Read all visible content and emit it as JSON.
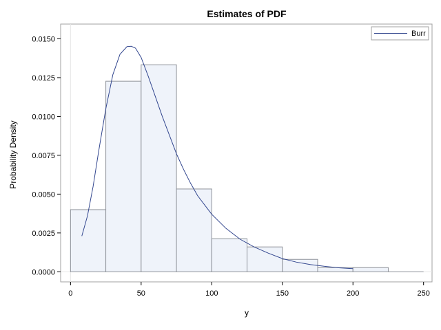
{
  "chart_data": {
    "type": "bar",
    "title": "Estimates of PDF",
    "xlabel": "y",
    "ylabel": "Probability Density",
    "xlim": [
      -7,
      256
    ],
    "ylim": [
      -0.00065,
      0.01595
    ],
    "x_ticks": [
      0,
      50,
      100,
      150,
      200,
      250
    ],
    "x_tick_labels": [
      "0",
      "50",
      "100",
      "150",
      "200",
      "250"
    ],
    "y_ticks": [
      0,
      0.0025,
      0.005,
      0.0075,
      0.01,
      0.0125,
      0.015
    ],
    "y_tick_labels": [
      "0.0000",
      "0.0025",
      "0.0050",
      "0.0075",
      "0.0100",
      "0.0125",
      "0.0150"
    ],
    "grid": false,
    "histogram": {
      "bins": [
        {
          "start": 0,
          "end": 25,
          "density": 0.004
        },
        {
          "start": 25,
          "end": 50,
          "density": 0.01227
        },
        {
          "start": 50,
          "end": 75,
          "density": 0.01333
        },
        {
          "start": 75,
          "end": 100,
          "density": 0.00533
        },
        {
          "start": 100,
          "end": 125,
          "density": 0.00213
        },
        {
          "start": 125,
          "end": 150,
          "density": 0.0016
        },
        {
          "start": 150,
          "end": 175,
          "density": 0.0008
        },
        {
          "start": 175,
          "end": 200,
          "density": 0.00027
        },
        {
          "start": 200,
          "end": 225,
          "density": 0.00027
        },
        {
          "start": 225,
          "end": 250,
          "density": 0.0
        }
      ],
      "fill_color": "#eff3fa",
      "edge_color": "#8e9299"
    },
    "series": [
      {
        "name": "Burr",
        "type": "line",
        "color": "#33478f",
        "x": [
          8,
          12,
          16,
          20,
          25,
          30,
          35,
          40,
          43,
          46,
          50,
          55,
          60,
          65,
          70,
          75,
          80,
          85,
          90,
          95,
          100,
          110,
          120,
          130,
          140,
          150,
          160,
          170,
          180,
          190,
          200
        ],
        "y": [
          0.0023,
          0.0036,
          0.0055,
          0.0078,
          0.0105,
          0.0127,
          0.014,
          0.0145,
          0.01452,
          0.0144,
          0.0138,
          0.0126,
          0.0113,
          0.01,
          0.0088,
          0.0076,
          0.0066,
          0.0057,
          0.0049,
          0.0043,
          0.0037,
          0.0028,
          0.0021,
          0.0016,
          0.0012,
          0.00085,
          0.00062,
          0.00046,
          0.00035,
          0.00026,
          0.0002
        ]
      }
    ],
    "legend": {
      "position": "top-right",
      "entries": [
        "Burr"
      ]
    }
  }
}
